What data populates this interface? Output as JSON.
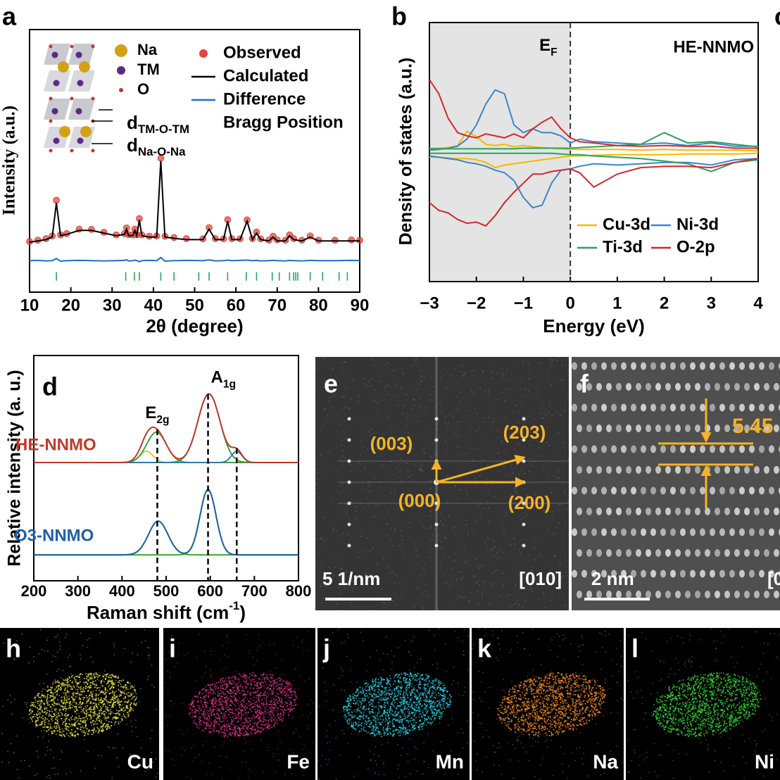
{
  "chart_data": [
    {
      "type": "line",
      "panel": "a",
      "xlabel": "2θ (degree)",
      "ylabel": "Intensity (a.u.)",
      "xlim": [
        10,
        90
      ],
      "ylim": [
        0,
        100
      ],
      "xticks": [
        10,
        20,
        30,
        40,
        50,
        60,
        70,
        80,
        90
      ],
      "x": [
        10,
        12,
        14,
        15.5,
        16.5,
        17.5,
        19,
        22,
        25,
        28,
        31,
        33,
        33.5,
        34,
        35,
        35.5,
        36,
        36.6,
        37.2,
        39,
        40.8,
        41.8,
        42.8,
        45,
        48,
        52,
        53.5,
        55,
        57,
        58,
        59,
        61,
        62.7,
        64,
        65,
        66,
        68,
        69,
        70,
        72,
        73,
        74,
        76,
        78,
        80,
        84,
        88,
        90
      ],
      "series": [
        {
          "name": "Observed",
          "color": "#e8453c",
          "marker": "circle",
          "values": [
            19.3,
            19.8,
            20.4,
            21.4,
            35,
            21.8,
            22.3,
            24,
            23.9,
            22.8,
            21.8,
            22.3,
            24.5,
            21.9,
            21.8,
            24,
            21.9,
            28,
            21.8,
            21.3,
            21.4,
            51,
            21.3,
            20.8,
            20.4,
            20.3,
            24.6,
            20.4,
            20.3,
            27.6,
            20.4,
            20.3,
            27.5,
            20.4,
            22.9,
            20.3,
            19.8,
            21.3,
            19.9,
            19.8,
            21.8,
            20.4,
            19.8,
            21.4,
            19.8,
            19.8,
            19.9,
            19.8
          ]
        },
        {
          "name": "Calculated",
          "color": "#000000",
          "values": [
            19,
            19.5,
            20,
            21,
            34,
            21.5,
            22,
            23.5,
            23.5,
            22.5,
            21.5,
            22,
            24,
            21.5,
            21.5,
            23.5,
            21.5,
            27.5,
            21.5,
            21,
            21,
            50,
            21,
            20.5,
            20,
            20,
            24,
            20,
            20,
            27,
            20,
            20,
            27,
            20,
            22.5,
            20,
            19.5,
            21,
            19.5,
            19.5,
            21.5,
            20,
            19.5,
            21,
            19.5,
            19.5,
            19.5,
            19.5
          ]
        },
        {
          "name": "Difference",
          "color": "#1f6fd1",
          "values": [
            12,
            12.1,
            11.9,
            12,
            12.8,
            11.8,
            12,
            12.1,
            12,
            11.9,
            12,
            12.1,
            12.3,
            11.9,
            12,
            12.2,
            12,
            11.6,
            12,
            12.1,
            12,
            13.2,
            11.8,
            12,
            12.1,
            12,
            12.3,
            11.9,
            12,
            12.2,
            12,
            12.1,
            12.2,
            12,
            12.1,
            11.9,
            12,
            12.1,
            12,
            11.9,
            12.1,
            12,
            11.9,
            12.1,
            12,
            12,
            12.1,
            12
          ]
        },
        {
          "name": "Bragg Position",
          "color": "#2ca25f",
          "marker": "tick",
          "x": [
            16.5,
            33.3,
            35.4,
            36.6,
            41.8,
            45,
            51,
            53.5,
            58,
            62.5,
            65,
            68.8,
            70.5,
            73,
            74,
            74.5,
            75,
            78,
            81,
            85,
            87
          ],
          "values": [
            6,
            6,
            6,
            6,
            6,
            6,
            6,
            6,
            6,
            6,
            6,
            6,
            6,
            6,
            6,
            6,
            6,
            6,
            6,
            6,
            6
          ]
        }
      ],
      "structure_legend": [
        {
          "name": "Na",
          "color": "#d4a017"
        },
        {
          "name": "TM",
          "color": "#5b2a86"
        },
        {
          "name": "O",
          "color": "#c0392b"
        }
      ],
      "annotations": [
        {
          "text": "d",
          "sub": "TM-O-TM"
        },
        {
          "text": "d",
          "sub": "Na-O-Na"
        }
      ]
    },
    {
      "type": "line",
      "panel": "b",
      "xlabel": "Energy (eV)",
      "ylabel": "Density of states (a.u.)",
      "xlim": [
        -3,
        4
      ],
      "ylim": [
        -10,
        10
      ],
      "xticks": [
        {
          "value": -3,
          "label": "−3"
        },
        {
          "value": -2,
          "label": "−2"
        },
        {
          "value": -1,
          "label": "−1"
        },
        0,
        1,
        2,
        3,
        4
      ],
      "fermi_level": {
        "value": 0,
        "text": "E",
        "sub": "F"
      },
      "label": "HE-NNMO",
      "shade": "#e4e4e4",
      "legend": "lower right",
      "x": [
        -3,
        -2.8,
        -2.6,
        -2.4,
        -2.2,
        -2,
        -1.8,
        -1.6,
        -1.4,
        -1.2,
        -1,
        -0.8,
        -0.6,
        -0.4,
        -0.2,
        0,
        0.2,
        0.5,
        1,
        1.5,
        2,
        2.5,
        3,
        3.5,
        4
      ],
      "series": [
        {
          "name": "Cu-3d",
          "color": "#f5b800",
          "values": [
            0.3,
            0.3,
            0.35,
            0.5,
            1.6,
            1.2,
            0.6,
            0.5,
            0.6,
            0.4,
            0.5,
            0.4,
            0.35,
            0.3,
            0.25,
            0.2,
            0.2,
            0.2,
            0.2,
            0.15,
            0.2,
            0.15,
            0.15,
            0.15,
            0.1
          ],
          "values_down": [
            -0.4,
            -0.4,
            -0.45,
            -0.5,
            -0.5,
            -0.6,
            -0.8,
            -1.2,
            -1,
            -0.9,
            -0.8,
            -0.7,
            -0.6,
            -0.5,
            -0.4,
            -0.3,
            -0.3,
            -0.25,
            -0.2,
            -0.2,
            -0.2,
            -0.15,
            -0.15,
            -0.15,
            -0.1
          ]
        },
        {
          "name": "Ni-3d",
          "color": "#3a86c8",
          "values": [
            0.15,
            0.2,
            0.3,
            0.45,
            1,
            2.1,
            3.7,
            4.8,
            4.5,
            2.1,
            1.5,
            1.8,
            1.5,
            1.5,
            1.25,
            0.7,
            1,
            0.8,
            0.7,
            0.6,
            0.7,
            0.5,
            0.7,
            0.45,
            0.45
          ],
          "values_down": [
            -0.3,
            -0.4,
            -0.5,
            -0.6,
            -0.8,
            -0.9,
            -1.1,
            -1.4,
            -1.6,
            -2.2,
            -3.5,
            -4.3,
            -4.1,
            -2.4,
            -1.4,
            -1.3,
            -1.1,
            -0.9,
            -1,
            -0.9,
            -0.8,
            -0.8,
            -1,
            -0.6,
            -0.5
          ]
        },
        {
          "name": "Ti-3d",
          "color": "#2ca25f",
          "values": [
            0.25,
            0.25,
            0.25,
            0.25,
            0.25,
            0.25,
            0.25,
            0.25,
            0.25,
            0.25,
            0.3,
            0.3,
            0.3,
            0.3,
            0.3,
            0.3,
            0.35,
            0.4,
            0.5,
            0.6,
            1.5,
            0.7,
            0.8,
            0.6,
            0.4
          ],
          "values_down": [
            -0.1,
            -0.1,
            -0.1,
            -0.1,
            -0.1,
            -0.1,
            -0.1,
            -0.1,
            -0.1,
            -0.1,
            -0.1,
            -0.1,
            -0.1,
            -0.1,
            -0.15,
            -0.2,
            -0.2,
            -0.3,
            -0.4,
            -0.5,
            -0.7,
            -0.9,
            -1.5,
            -0.8,
            -0.6
          ]
        },
        {
          "name": "O-2p",
          "color": "#d62728",
          "values": [
            5.6,
            4.5,
            2.6,
            1.5,
            1.25,
            1.1,
            1.4,
            1.25,
            1.1,
            1.4,
            1.1,
            1.8,
            2.3,
            2.7,
            1.8,
            1.1,
            0.8,
            0.7,
            0.5,
            0.45,
            0.5,
            0.45,
            0.45,
            0.3,
            0.3
          ],
          "values_down": [
            -3.9,
            -4.5,
            -4.7,
            -5.2,
            -5.5,
            -5.4,
            -5.7,
            -4.9,
            -3.9,
            -3.1,
            -2.4,
            -1.7,
            -1.7,
            -1.5,
            -1.4,
            -1.3,
            -1.6,
            -2.7,
            -1.7,
            -1.2,
            -1.1,
            -1.1,
            -1.2,
            -0.8,
            -0.5
          ]
        }
      ]
    },
    {
      "type": "line",
      "panel": "d",
      "xlabel": {
        "text": "Raman shift (cm",
        "sup": "-1",
        "tail": ")"
      },
      "ylabel": "Relative intensity (a. u.)",
      "xlim": [
        200,
        800
      ],
      "ylim": [
        0,
        10
      ],
      "xticks": [
        200,
        300,
        400,
        500,
        600,
        700,
        800
      ],
      "series": [
        {
          "name": "HE-NNMO",
          "color": "#c0392b",
          "baseline": 5.25,
          "components": [
            {
              "color": "#f0c020",
              "center": 455,
              "height": 0.5,
              "width": 15
            },
            {
              "color": "#2ca02c",
              "center": 478,
              "height": 1.35,
              "width": 22
            },
            {
              "color": "#2ca02c",
              "center": 597,
              "height": 3.05,
              "width": 25
            },
            {
              "color": "#1f77b4",
              "center": 660,
              "height": 0.5,
              "width": 12
            }
          ]
        },
        {
          "name": "O3-NNMO",
          "color": "#1f5fa8",
          "baseline": 1.15,
          "components": [
            {
              "color": "#2ca02c",
              "center": 482,
              "height": 1.5,
              "width": 22
            },
            {
              "color": "#2ca02c",
              "center": 595,
              "height": 2.9,
              "width": 18
            }
          ]
        }
      ],
      "ref_lines": [
        480,
        595,
        660
      ],
      "peak_labels": [
        {
          "text": "E",
          "sub": "2g"
        },
        {
          "text": "A",
          "sub": "1g"
        }
      ]
    }
  ],
  "panels": {
    "c": {
      "label": "c"
    },
    "e": {
      "label": "e",
      "spots": [
        "(003)",
        "(203)",
        "(000)",
        "(200)"
      ],
      "scale_bar": "5 1/nm",
      "zone_axis": "[010]"
    },
    "f": {
      "label": "f",
      "spacing": "5.45",
      "scale_bar": "2 nm",
      "zone_axis": "[0"
    }
  },
  "maps": [
    {
      "label": "h",
      "element": "Cu",
      "color": "#e6e04a"
    },
    {
      "label": "i",
      "element": "Fe",
      "color": "#e0308a"
    },
    {
      "label": "j",
      "element": "Mn",
      "color": "#22d4e6"
    },
    {
      "label": "k",
      "element": "Na",
      "color": "#f08a20"
    },
    {
      "label": "l",
      "element": "Ni",
      "color": "#33d633"
    }
  ]
}
